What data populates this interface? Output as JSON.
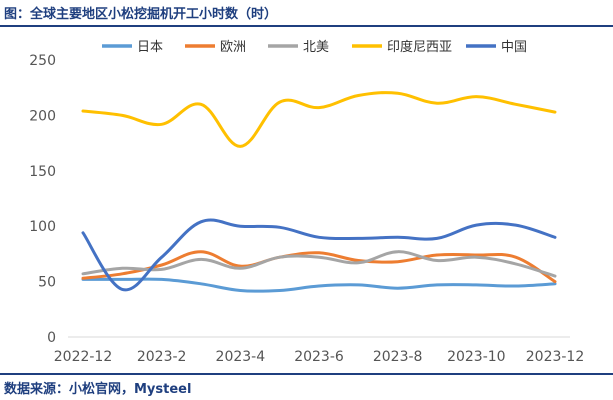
{
  "header": {
    "title": "图：全球主要地区小松挖掘机开工小时数（时）"
  },
  "footer": {
    "source": "数据来源：小松官网，Mysteel"
  },
  "chart_data": {
    "type": "line",
    "x": [
      "2022-12",
      "2023-1",
      "2023-2",
      "2023-3",
      "2023-4",
      "2023-5",
      "2023-6",
      "2023-7",
      "2023-8",
      "2023-9",
      "2023-10",
      "2023-11",
      "2023-12"
    ],
    "x_tick_labels": [
      "2022-12",
      "2023-2",
      "2023-4",
      "2023-6",
      "2023-8",
      "2023-10",
      "2023-12"
    ],
    "y_tick_labels": [
      "0",
      "50",
      "100",
      "150",
      "200",
      "250"
    ],
    "ylim": [
      0,
      250
    ],
    "grid": false,
    "legend_position": "top",
    "title": "",
    "xlabel": "",
    "ylabel": "",
    "series": [
      {
        "name": "日本",
        "color": "#5b9bd5",
        "values": [
          52,
          52,
          52,
          48,
          42,
          42,
          46,
          47,
          44,
          47,
          47,
          46,
          48
        ]
      },
      {
        "name": "欧洲",
        "color": "#ed7d31",
        "values": [
          53,
          57,
          65,
          77,
          64,
          72,
          76,
          69,
          68,
          74,
          74,
          72,
          50
        ]
      },
      {
        "name": "北美",
        "color": "#a5a5a5",
        "values": [
          57,
          62,
          61,
          70,
          62,
          72,
          72,
          67,
          77,
          69,
          72,
          66,
          55
        ]
      },
      {
        "name": "印度尼西亚",
        "color": "#ffc000",
        "values": [
          204,
          200,
          192,
          210,
          172,
          212,
          207,
          218,
          220,
          211,
          217,
          210,
          203
        ]
      },
      {
        "name": "中国",
        "color": "#4472c4",
        "values": [
          94,
          43,
          72,
          104,
          100,
          99,
          90,
          89,
          90,
          89,
          101,
          101,
          90
        ]
      }
    ]
  }
}
